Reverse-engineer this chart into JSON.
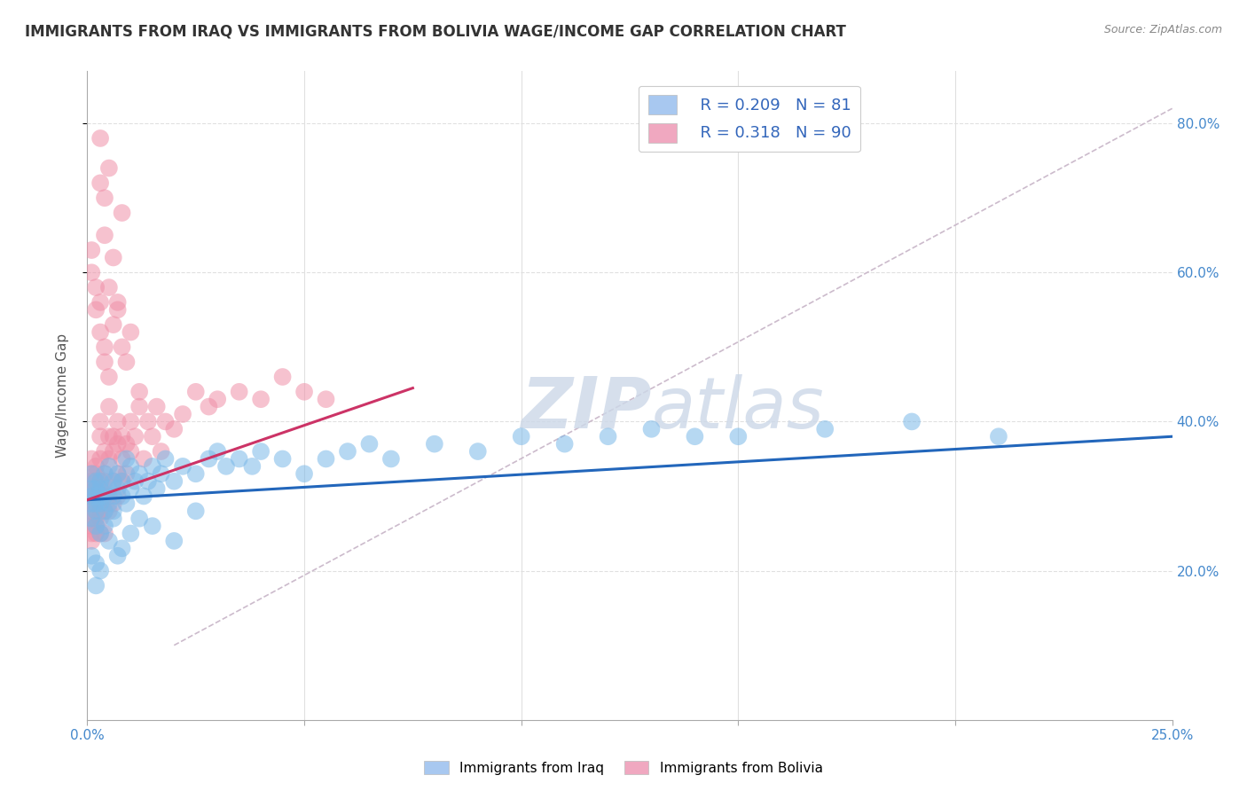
{
  "title": "IMMIGRANTS FROM IRAQ VS IMMIGRANTS FROM BOLIVIA WAGE/INCOME GAP CORRELATION CHART",
  "source": "Source: ZipAtlas.com",
  "ylabel": "Wage/Income Gap",
  "xlim": [
    0.0,
    0.25
  ],
  "ylim": [
    0.0,
    0.87
  ],
  "yticks": [
    0.2,
    0.4,
    0.6,
    0.8
  ],
  "yticklabels": [
    "20.0%",
    "40.0%",
    "60.0%",
    "80.0%"
  ],
  "background_color": "#ffffff",
  "grid_color": "#e0e0e0",
  "iraq_color": "#7ab8e8",
  "iraq_line_color": "#2266bb",
  "bolivia_color": "#f090a8",
  "bolivia_line_color": "#cc3366",
  "ref_line_color": "#ccbbcc",
  "watermark_color": "#ccd8e8",
  "iraq_points_x": [
    0.001,
    0.001,
    0.001,
    0.001,
    0.001,
    0.002,
    0.002,
    0.002,
    0.002,
    0.002,
    0.002,
    0.003,
    0.003,
    0.003,
    0.003,
    0.004,
    0.004,
    0.004,
    0.005,
    0.005,
    0.005,
    0.006,
    0.006,
    0.006,
    0.007,
    0.007,
    0.008,
    0.008,
    0.009,
    0.009,
    0.01,
    0.01,
    0.011,
    0.012,
    0.013,
    0.014,
    0.015,
    0.016,
    0.017,
    0.018,
    0.02,
    0.022,
    0.025,
    0.028,
    0.03,
    0.032,
    0.035,
    0.038,
    0.04,
    0.045,
    0.05,
    0.055,
    0.06,
    0.065,
    0.07,
    0.08,
    0.09,
    0.1,
    0.11,
    0.12,
    0.13,
    0.14,
    0.15,
    0.17,
    0.19,
    0.21,
    0.001,
    0.002,
    0.002,
    0.003,
    0.003,
    0.004,
    0.005,
    0.006,
    0.007,
    0.008,
    0.01,
    0.012,
    0.015,
    0.02,
    0.025
  ],
  "iraq_points_y": [
    0.29,
    0.3,
    0.31,
    0.27,
    0.33,
    0.28,
    0.31,
    0.3,
    0.32,
    0.29,
    0.26,
    0.3,
    0.29,
    0.32,
    0.31,
    0.28,
    0.3,
    0.33,
    0.31,
    0.29,
    0.34,
    0.3,
    0.32,
    0.28,
    0.31,
    0.33,
    0.3,
    0.32,
    0.29,
    0.35,
    0.31,
    0.34,
    0.32,
    0.33,
    0.3,
    0.32,
    0.34,
    0.31,
    0.33,
    0.35,
    0.32,
    0.34,
    0.33,
    0.35,
    0.36,
    0.34,
    0.35,
    0.34,
    0.36,
    0.35,
    0.33,
    0.35,
    0.36,
    0.37,
    0.35,
    0.37,
    0.36,
    0.38,
    0.37,
    0.38,
    0.39,
    0.38,
    0.38,
    0.39,
    0.4,
    0.38,
    0.22,
    0.18,
    0.21,
    0.2,
    0.25,
    0.26,
    0.24,
    0.27,
    0.22,
    0.23,
    0.25,
    0.27,
    0.26,
    0.24,
    0.28
  ],
  "bolivia_points_x": [
    0.001,
    0.001,
    0.001,
    0.001,
    0.001,
    0.001,
    0.001,
    0.001,
    0.001,
    0.001,
    0.001,
    0.002,
    0.002,
    0.002,
    0.002,
    0.002,
    0.002,
    0.002,
    0.002,
    0.002,
    0.002,
    0.003,
    0.003,
    0.003,
    0.003,
    0.003,
    0.003,
    0.003,
    0.003,
    0.003,
    0.003,
    0.004,
    0.004,
    0.004,
    0.004,
    0.004,
    0.004,
    0.005,
    0.005,
    0.005,
    0.005,
    0.005,
    0.006,
    0.006,
    0.006,
    0.006,
    0.007,
    0.007,
    0.007,
    0.007,
    0.008,
    0.008,
    0.008,
    0.009,
    0.009,
    0.01,
    0.01,
    0.011,
    0.012,
    0.013,
    0.014,
    0.015,
    0.016,
    0.017,
    0.018,
    0.02,
    0.022,
    0.025,
    0.028,
    0.03,
    0.035,
    0.04,
    0.045,
    0.05,
    0.055,
    0.001,
    0.001,
    0.002,
    0.002,
    0.003,
    0.003,
    0.004,
    0.004,
    0.005,
    0.006,
    0.007,
    0.008,
    0.009,
    0.01,
    0.012
  ],
  "bolivia_points_y": [
    0.28,
    0.3,
    0.32,
    0.25,
    0.27,
    0.29,
    0.31,
    0.26,
    0.33,
    0.24,
    0.35,
    0.28,
    0.3,
    0.32,
    0.27,
    0.34,
    0.26,
    0.29,
    0.31,
    0.25,
    0.33,
    0.29,
    0.32,
    0.35,
    0.27,
    0.3,
    0.38,
    0.25,
    0.28,
    0.31,
    0.4,
    0.3,
    0.33,
    0.36,
    0.28,
    0.32,
    0.25,
    0.35,
    0.3,
    0.38,
    0.28,
    0.42,
    0.32,
    0.36,
    0.29,
    0.38,
    0.33,
    0.37,
    0.3,
    0.4,
    0.35,
    0.38,
    0.32,
    0.37,
    0.33,
    0.36,
    0.4,
    0.38,
    0.42,
    0.35,
    0.4,
    0.38,
    0.42,
    0.36,
    0.4,
    0.39,
    0.41,
    0.44,
    0.42,
    0.43,
    0.44,
    0.43,
    0.46,
    0.44,
    0.43,
    0.6,
    0.63,
    0.55,
    0.58,
    0.52,
    0.56,
    0.5,
    0.48,
    0.46,
    0.53,
    0.56,
    0.5,
    0.48,
    0.52,
    0.44
  ],
  "bolivia_outliers_x": [
    0.003,
    0.004,
    0.005,
    0.006,
    0.007,
    0.008,
    0.003,
    0.004,
    0.005
  ],
  "bolivia_outliers_y": [
    0.72,
    0.65,
    0.58,
    0.62,
    0.55,
    0.68,
    0.78,
    0.7,
    0.74
  ],
  "iraq_line_x": [
    0.0,
    0.25
  ],
  "iraq_line_y": [
    0.295,
    0.38
  ],
  "bolivia_line_x": [
    0.0,
    0.075
  ],
  "bolivia_line_y": [
    0.295,
    0.445
  ],
  "ref_line_x": [
    0.02,
    0.25
  ],
  "ref_line_y": [
    0.1,
    0.82
  ]
}
